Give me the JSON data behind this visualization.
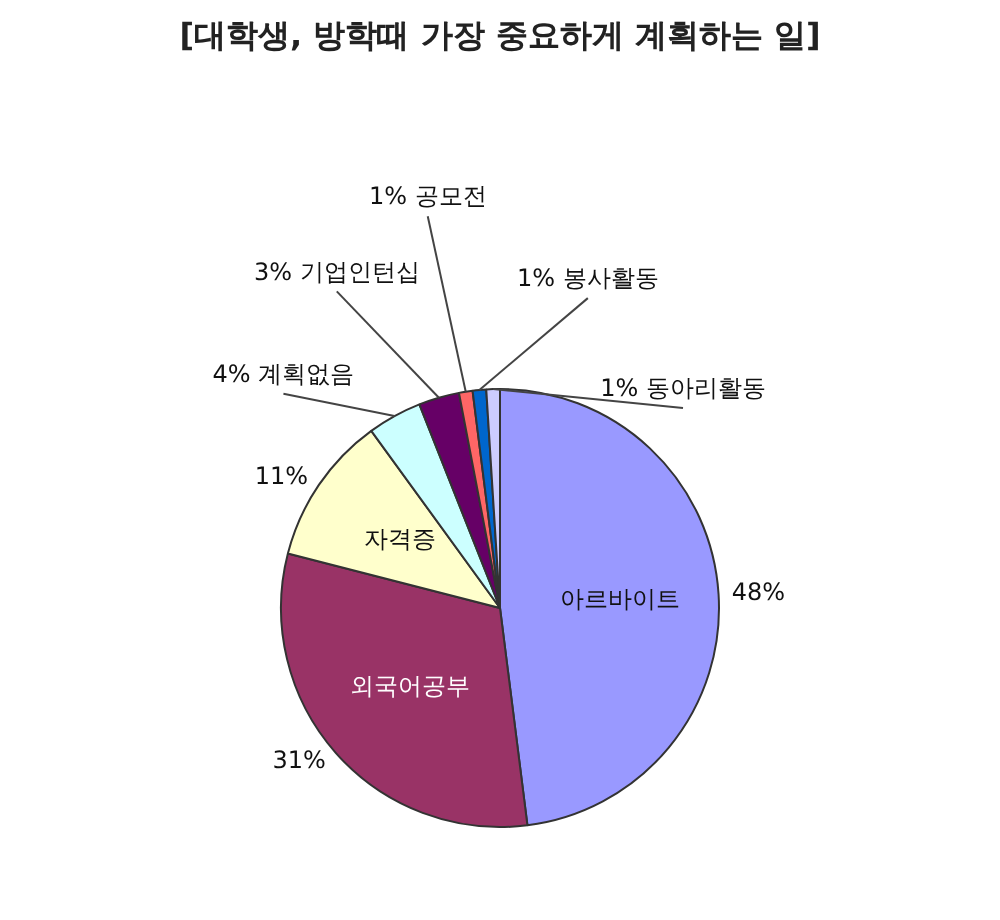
{
  "chart_data": {
    "type": "pie",
    "title": "[대학생, 방학때 가장 중요하게 계획하는 일]",
    "categories": [
      "아르바이트",
      "외국어공부",
      "자격증",
      "계획없음",
      "기업인턴십",
      "공모전",
      "봉사활동",
      "동아리활동"
    ],
    "values": [
      48,
      31,
      11,
      4,
      3,
      1,
      1,
      1
    ],
    "colors": [
      "#9999ff",
      "#993366",
      "#ffffcc",
      "#ccffff",
      "#660066",
      "#ff6666",
      "#0066cc",
      "#ccccff"
    ],
    "value_labels": [
      "48%",
      "31%",
      "11%",
      "4%",
      "3%",
      "1%",
      "1%",
      "1%"
    ],
    "legend": false
  }
}
